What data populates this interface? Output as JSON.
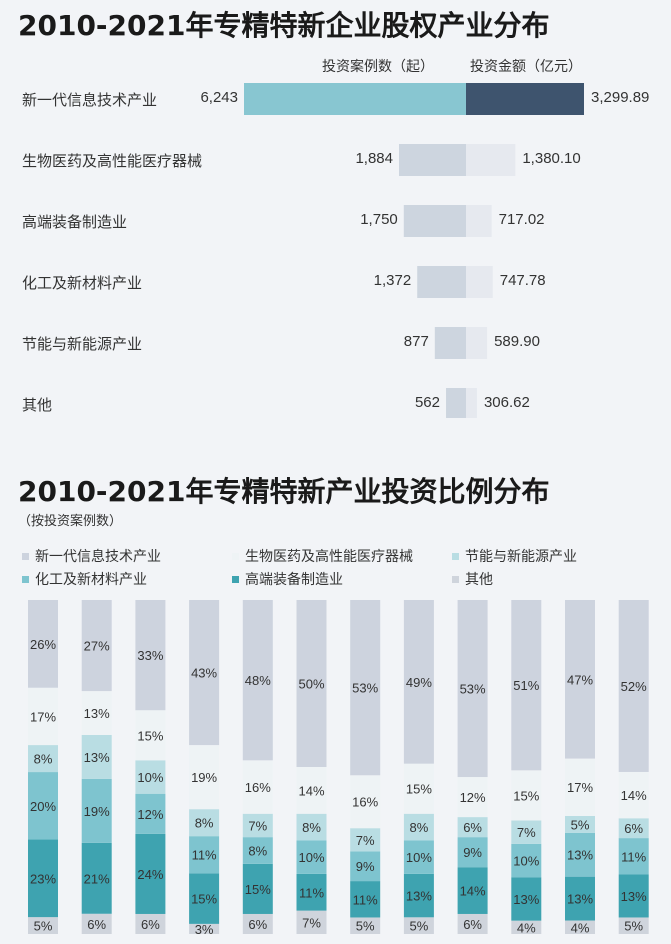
{
  "title1": "2010-2021年专精特新企业股权产业分布",
  "title2": "2010-2021年专精特新产业投资比例分布",
  "subtitle2": "（按投资案例数）",
  "colors": {
    "count_bar": "#cdd5df",
    "amount_bar": "#e6e9ef",
    "highlight_count": "#88c6d1",
    "highlight_amount": "#3e546e",
    "seg_xinyidai": "#cdd3de",
    "seg_shengwu": "#eef3f5",
    "seg_jieneng": "#b9dde3",
    "seg_huagong": "#7ec4cf",
    "seg_gaoduan": "#3ea3b0",
    "seg_qita": "#cfd4dc"
  },
  "chart_data": [
    {
      "type": "bar",
      "title": "2010-2021年专精特新企业股权产业分布",
      "orientation": "horizontal-butterfly",
      "series": [
        {
          "name": "投资案例数（起）",
          "values": [
            6243,
            1884,
            1750,
            1372,
            877,
            562
          ],
          "labels": [
            "6,243",
            "1,884",
            "1,750",
            "1,372",
            "877",
            "562"
          ]
        },
        {
          "name": "投资金额（亿元）",
          "values": [
            3299.89,
            1380.1,
            717.02,
            747.78,
            589.9,
            306.62
          ],
          "labels": [
            "3,299.89",
            "1,380.10",
            "717.02",
            "747.78",
            "589.90",
            "306.62"
          ]
        }
      ],
      "categories": [
        "新一代信息技术产业",
        "生物医药及高性能医疗器械",
        "高端装备制造业",
        "化工及新材料产业",
        "节能与新能源产业",
        "其他"
      ]
    },
    {
      "type": "bar",
      "stacked": true,
      "percent": true,
      "title": "2010-2021年专精特新产业投资比例分布",
      "subtitle": "（按投资案例数）",
      "categories": [
        "",
        "",
        "",
        "",
        "",
        "",
        "",
        "",
        "",
        "",
        "",
        ""
      ],
      "legend": [
        {
          "name": "新一代信息技术产业",
          "color_key": "seg_xinyidai"
        },
        {
          "name": "生物医药及高性能医疗器械",
          "color_key": "seg_shengwu"
        },
        {
          "name": "节能与新能源产业",
          "color_key": "seg_jieneng"
        },
        {
          "name": "化工及新材料产业",
          "color_key": "seg_huagong"
        },
        {
          "name": "高端装备制造业",
          "color_key": "seg_gaoduan"
        },
        {
          "name": "其他",
          "color_key": "seg_qita"
        }
      ],
      "series": [
        {
          "name": "其他",
          "color_key": "seg_qita",
          "values": [
            5,
            6,
            6,
            3,
            6,
            7,
            5,
            5,
            6,
            4,
            4,
            5
          ]
        },
        {
          "name": "高端装备制造业",
          "color_key": "seg_gaoduan",
          "values": [
            23,
            21,
            24,
            15,
            15,
            11,
            11,
            13,
            14,
            13,
            13,
            13
          ]
        },
        {
          "name": "化工及新材料产业",
          "color_key": "seg_huagong",
          "values": [
            20,
            19,
            12,
            11,
            8,
            10,
            9,
            10,
            9,
            10,
            13,
            11
          ]
        },
        {
          "name": "节能与新能源产业",
          "color_key": "seg_jieneng",
          "values": [
            8,
            13,
            10,
            8,
            7,
            8,
            7,
            8,
            6,
            7,
            5,
            6
          ]
        },
        {
          "name": "生物医药及高性能医疗器械",
          "color_key": "seg_shengwu",
          "values": [
            17,
            13,
            15,
            19,
            16,
            14,
            16,
            15,
            12,
            15,
            17,
            14
          ]
        },
        {
          "name": "新一代信息技术产业",
          "color_key": "seg_xinyidai",
          "values": [
            26,
            27,
            33,
            43,
            48,
            50,
            53,
            49,
            53,
            51,
            47,
            52
          ]
        }
      ],
      "value_suffix": "%"
    }
  ]
}
